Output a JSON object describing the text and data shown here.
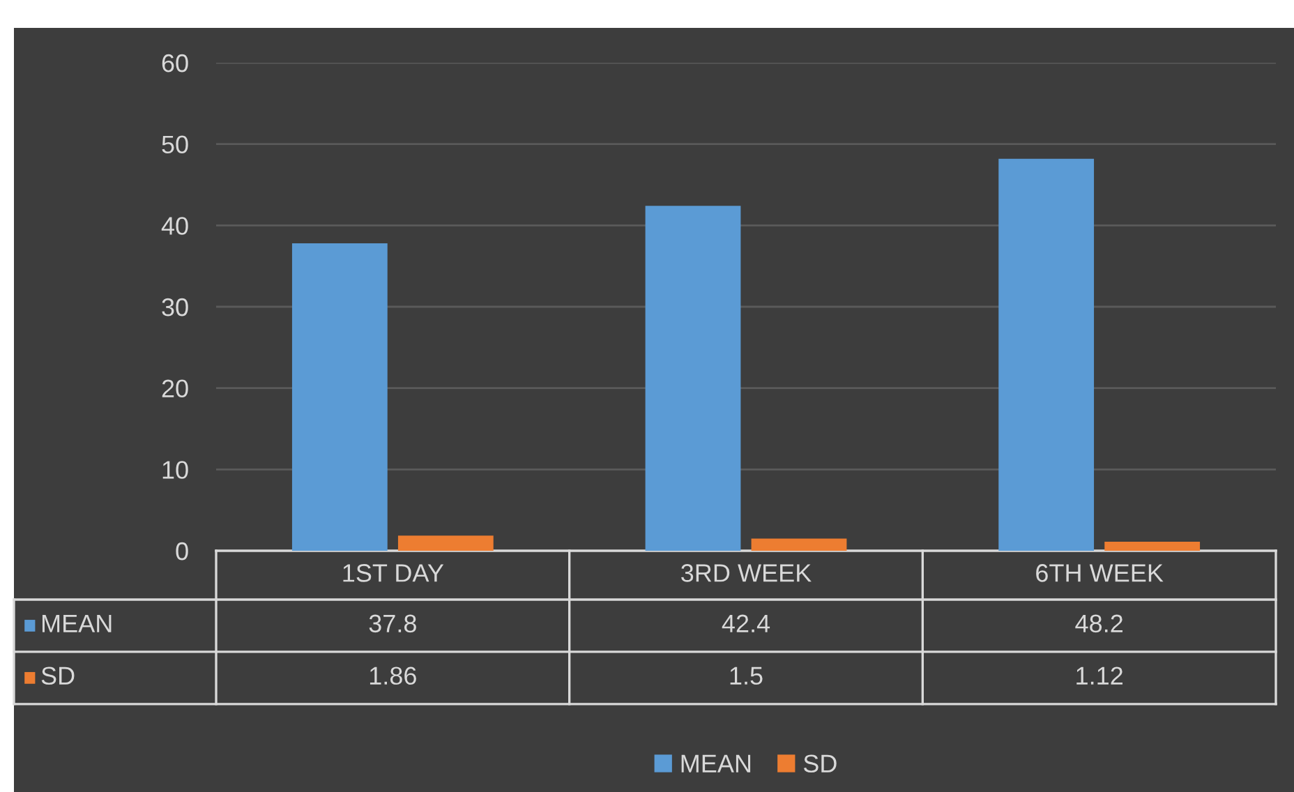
{
  "chart_data": {
    "type": "bar",
    "categories": [
      "1ST DAY",
      "3RD WEEK",
      "6TH WEEK"
    ],
    "series": [
      {
        "name": "MEAN",
        "color": "#5b9bd5",
        "values": [
          37.8,
          42.4,
          48.2
        ]
      },
      {
        "name": "SD",
        "color": "#ed7d31",
        "values": [
          1.86,
          1.5,
          1.12
        ]
      }
    ],
    "ylim": [
      0,
      60
    ],
    "yticks": [
      0,
      10,
      20,
      30,
      40,
      50,
      60
    ],
    "grid": "y",
    "legend": "bottom",
    "data_labels": true
  }
}
